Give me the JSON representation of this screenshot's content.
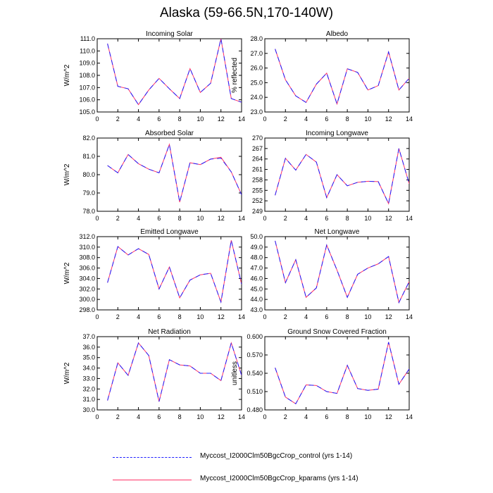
{
  "figure": {
    "title": "Alaska (59-66.5N,170-140W)"
  },
  "legend": {
    "entries": [
      {
        "label": "Myccost_I2000Clm50BgcCrop_control (yrs 1-14)",
        "color": "#1f1fff",
        "style": "dashed"
      },
      {
        "label": "Myccost_I2000Clm50BgcCrop_kparams (yrs 1-14)",
        "color": "#ff3366",
        "style": "solid"
      }
    ]
  },
  "chart_data": [
    {
      "type": "line",
      "title": "Incoming Solar",
      "ylabel": "W/m^2",
      "xlim": [
        0,
        14
      ],
      "xticks": [
        0,
        2,
        4,
        6,
        8,
        10,
        12,
        14
      ],
      "ylim": [
        105.0,
        111.0
      ],
      "yticks": [
        105.0,
        106.0,
        107.0,
        108.0,
        109.0,
        110.0,
        111.0
      ],
      "ytick_labels": [
        "105.0",
        "106.0",
        "107.0",
        "108.0",
        "109.0",
        "110.0",
        "111.0"
      ],
      "x": [
        1,
        2,
        3,
        4,
        5,
        6,
        7,
        8,
        9,
        10,
        11,
        12,
        13,
        14
      ],
      "series": [
        {
          "values": [
            110.6,
            107.1,
            106.9,
            105.6,
            106.8,
            107.75,
            106.9,
            106.1,
            108.55,
            106.6,
            107.35,
            111.0,
            106.1,
            105.8
          ]
        },
        {
          "values": [
            110.6,
            107.1,
            106.9,
            105.6,
            106.8,
            107.75,
            106.9,
            106.1,
            108.55,
            106.6,
            107.35,
            111.0,
            106.1,
            105.8
          ]
        }
      ]
    },
    {
      "type": "line",
      "title": "Albedo",
      "ylabel": "% reflected",
      "xlim": [
        0,
        14
      ],
      "xticks": [
        0,
        2,
        4,
        6,
        8,
        10,
        12,
        14
      ],
      "ylim": [
        23.0,
        28.0
      ],
      "yticks": [
        23.0,
        24.0,
        25.0,
        26.0,
        27.0,
        28.0
      ],
      "ytick_labels": [
        "23.0",
        "24.0",
        "25.0",
        "26.0",
        "27.0",
        "28.0"
      ],
      "x": [
        1,
        2,
        3,
        4,
        5,
        6,
        7,
        8,
        9,
        10,
        11,
        12,
        13,
        14
      ],
      "series": [
        {
          "values": [
            27.3,
            25.2,
            24.1,
            23.65,
            24.9,
            25.65,
            23.55,
            25.95,
            25.7,
            24.5,
            24.8,
            27.1,
            24.5,
            25.3
          ]
        },
        {
          "values": [
            27.3,
            25.2,
            24.1,
            23.65,
            24.9,
            25.65,
            23.55,
            25.95,
            25.7,
            24.5,
            24.8,
            27.1,
            24.5,
            25.3
          ]
        }
      ]
    },
    {
      "type": "line",
      "title": "Absorbed Solar",
      "ylabel": "W/m^2",
      "xlim": [
        0,
        14
      ],
      "xticks": [
        0,
        2,
        4,
        6,
        8,
        10,
        12,
        14
      ],
      "ylim": [
        78.0,
        82.0
      ],
      "yticks": [
        78.0,
        79.0,
        80.0,
        81.0,
        82.0
      ],
      "ytick_labels": [
        "78.0",
        "79.0",
        "80.0",
        "81.0",
        "82.0"
      ],
      "x": [
        1,
        2,
        3,
        4,
        5,
        6,
        7,
        8,
        9,
        10,
        11,
        12,
        13,
        14
      ],
      "series": [
        {
          "values": [
            80.5,
            80.1,
            81.1,
            80.6,
            80.3,
            80.1,
            81.65,
            78.5,
            80.65,
            80.55,
            80.85,
            80.9,
            80.15,
            78.9
          ]
        },
        {
          "values": [
            80.5,
            80.1,
            81.1,
            80.6,
            80.3,
            80.1,
            81.65,
            78.5,
            80.65,
            80.55,
            80.85,
            80.95,
            80.15,
            78.9
          ]
        }
      ]
    },
    {
      "type": "line",
      "title": "Incoming Longwave",
      "ylabel": "",
      "xlim": [
        0,
        14
      ],
      "xticks": [
        0,
        2,
        4,
        6,
        8,
        10,
        12,
        14
      ],
      "ylim": [
        249,
        270
      ],
      "yticks": [
        249,
        252,
        255,
        258,
        261,
        264,
        267,
        270
      ],
      "ytick_labels": [
        "249",
        "252",
        "255",
        "258",
        "261",
        "264",
        "267",
        "270"
      ],
      "x": [
        1,
        2,
        3,
        4,
        5,
        6,
        7,
        8,
        9,
        10,
        11,
        12,
        13,
        14
      ],
      "series": [
        {
          "values": [
            253.6,
            264.2,
            260.8,
            265.3,
            263.1,
            252.9,
            259.5,
            256.3,
            257.3,
            257.6,
            257.5,
            251.2,
            267.0,
            256.9
          ]
        },
        {
          "values": [
            253.6,
            264.2,
            260.8,
            265.3,
            263.1,
            252.9,
            259.5,
            256.3,
            257.3,
            257.6,
            257.5,
            251.2,
            267.0,
            256.9
          ]
        }
      ]
    },
    {
      "type": "line",
      "title": "Emitted Longwave",
      "ylabel": "W/m^2",
      "xlim": [
        0,
        14
      ],
      "xticks": [
        0,
        2,
        4,
        6,
        8,
        10,
        12,
        14
      ],
      "ylim": [
        298.0,
        312.0
      ],
      "yticks": [
        298.0,
        300.0,
        302.0,
        304.0,
        306.0,
        308.0,
        310.0,
        312.0
      ],
      "ytick_labels": [
        "298.0",
        "300.0",
        "302.0",
        "304.0",
        "306.0",
        "308.0",
        "310.0",
        "312.0"
      ],
      "x": [
        1,
        2,
        3,
        4,
        5,
        6,
        7,
        8,
        9,
        10,
        11,
        12,
        13,
        14
      ],
      "series": [
        {
          "values": [
            303.2,
            310.1,
            308.5,
            309.7,
            308.6,
            302.0,
            306.2,
            300.3,
            303.7,
            304.7,
            305.0,
            299.5,
            311.3,
            302.9
          ]
        },
        {
          "values": [
            303.2,
            310.1,
            308.5,
            309.7,
            308.6,
            302.0,
            306.2,
            300.3,
            303.7,
            304.7,
            305.0,
            299.5,
            311.3,
            302.9
          ]
        }
      ]
    },
    {
      "type": "line",
      "title": "Net Longwave",
      "ylabel": "",
      "xlim": [
        0,
        14
      ],
      "xticks": [
        0,
        2,
        4,
        6,
        8,
        10,
        12,
        14
      ],
      "ylim": [
        43.0,
        50.0
      ],
      "yticks": [
        43.0,
        44.0,
        45.0,
        46.0,
        47.0,
        48.0,
        49.0,
        50.0
      ],
      "ytick_labels": [
        "43.0",
        "44.0",
        "45.0",
        "46.0",
        "47.0",
        "48.0",
        "49.0",
        "50.0"
      ],
      "x": [
        1,
        2,
        3,
        4,
        5,
        6,
        7,
        8,
        9,
        10,
        11,
        12,
        13,
        14
      ],
      "series": [
        {
          "values": [
            49.6,
            45.6,
            47.8,
            44.2,
            45.1,
            49.2,
            46.8,
            44.2,
            46.4,
            47.0,
            47.4,
            48.1,
            43.7,
            45.7
          ]
        },
        {
          "values": [
            49.6,
            45.6,
            47.8,
            44.2,
            45.1,
            49.2,
            46.8,
            44.2,
            46.4,
            47.0,
            47.4,
            48.1,
            43.7,
            45.7
          ]
        }
      ]
    },
    {
      "type": "line",
      "title": "Net Radiation",
      "ylabel": "W/m^2",
      "xlim": [
        0,
        14
      ],
      "xticks": [
        0,
        2,
        4,
        6,
        8,
        10,
        12,
        14
      ],
      "ylim": [
        30.0,
        37.0
      ],
      "yticks": [
        30.0,
        31.0,
        32.0,
        33.0,
        34.0,
        35.0,
        36.0,
        37.0
      ],
      "ytick_labels": [
        "30.0",
        "31.0",
        "32.0",
        "33.0",
        "34.0",
        "35.0",
        "36.0",
        "37.0"
      ],
      "x": [
        1,
        2,
        3,
        4,
        5,
        6,
        7,
        8,
        9,
        10,
        11,
        12,
        13,
        14
      ],
      "series": [
        {
          "values": [
            30.9,
            34.5,
            33.3,
            36.4,
            35.2,
            30.8,
            34.8,
            34.3,
            34.2,
            33.5,
            33.5,
            32.8,
            36.4,
            33.3
          ]
        },
        {
          "values": [
            30.9,
            34.5,
            33.3,
            36.4,
            35.2,
            30.8,
            34.8,
            34.3,
            34.2,
            33.5,
            33.5,
            32.8,
            36.4,
            33.3
          ]
        }
      ]
    },
    {
      "type": "line",
      "title": "Ground Snow Covered Fraction",
      "ylabel": "unitless",
      "xlim": [
        0,
        14
      ],
      "xticks": [
        0,
        2,
        4,
        6,
        8,
        10,
        12,
        14
      ],
      "ylim": [
        0.48,
        0.6
      ],
      "yticks": [
        0.48,
        0.51,
        0.54,
        0.57,
        0.6
      ],
      "ytick_labels": [
        "0.480",
        "0.510",
        "0.540",
        "0.570",
        "0.600"
      ],
      "x": [
        1,
        2,
        3,
        4,
        5,
        6,
        7,
        8,
        9,
        10,
        11,
        12,
        13,
        14
      ],
      "series": [
        {
          "values": [
            0.549,
            0.501,
            0.49,
            0.521,
            0.52,
            0.51,
            0.507,
            0.553,
            0.515,
            0.512,
            0.514,
            0.591,
            0.522,
            0.547
          ]
        },
        {
          "values": [
            0.549,
            0.501,
            0.49,
            0.521,
            0.52,
            0.51,
            0.507,
            0.553,
            0.515,
            0.512,
            0.514,
            0.591,
            0.522,
            0.547
          ]
        }
      ]
    }
  ]
}
